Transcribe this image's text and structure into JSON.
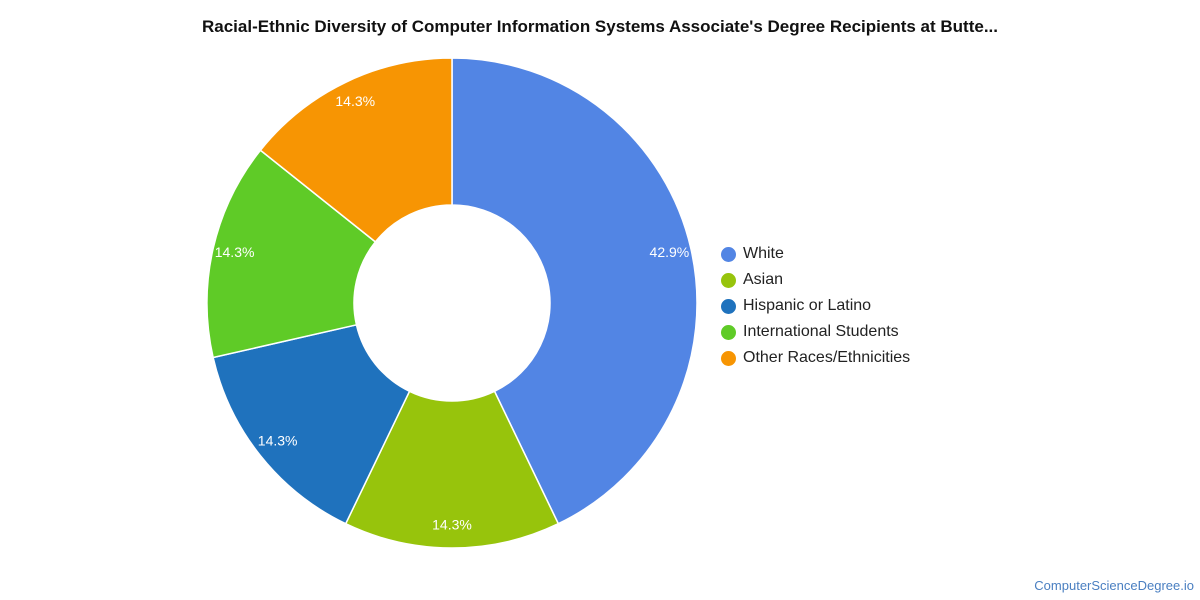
{
  "chart_data": {
    "type": "pie",
    "title": "Racial-Ethnic Diversity of Computer Information Systems Associate's Degree Recipients at Butte...",
    "donut": true,
    "legend_position": "right",
    "categories": [
      "White",
      "Asian",
      "Hispanic or Latino",
      "International Students",
      "Other Races/Ethnicities"
    ],
    "slices": [
      {
        "name": "White",
        "value": 42.9,
        "label": "42.9%",
        "color": "#5285E4"
      },
      {
        "name": "Asian",
        "value": 14.3,
        "label": "14.3%",
        "color": "#97C40C"
      },
      {
        "name": "Hispanic or Latino",
        "value": 14.3,
        "label": "14.3%",
        "color": "#1F72BD"
      },
      {
        "name": "International Students",
        "value": 14.3,
        "label": "14.3%",
        "color": "#5FCB27"
      },
      {
        "name": "Other Races/Ethnicities",
        "value": 14.3,
        "label": "14.3%",
        "color": "#F79503"
      }
    ]
  },
  "footer": {
    "source": "ComputerScienceDegree.io"
  }
}
